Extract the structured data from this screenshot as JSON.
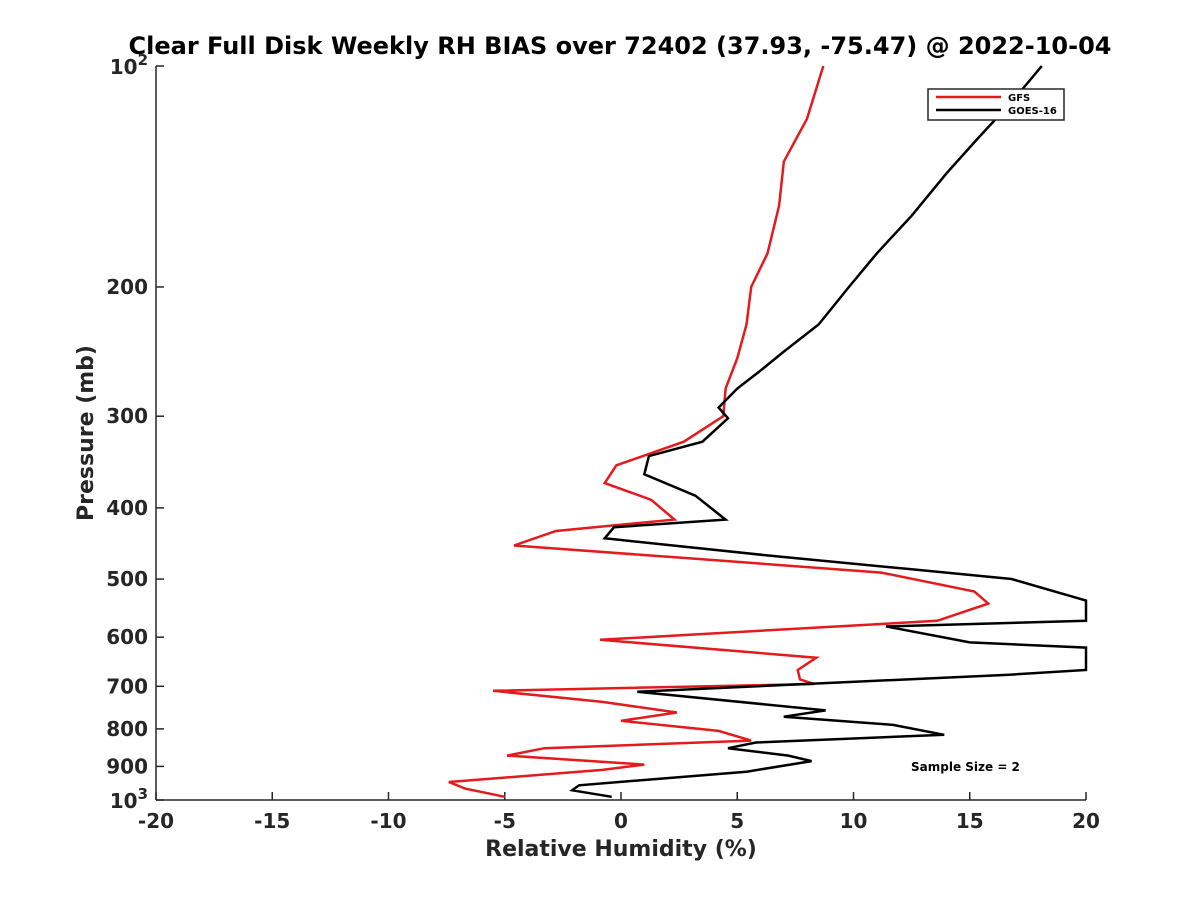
{
  "chart_data": {
    "type": "line",
    "title": "Clear Full Disk Weekly RH BIAS over 72402 (37.93, -75.47) @ 2022-10-04",
    "xlabel": "Relative Humidity (%)",
    "ylabel": "Pressure (mb)",
    "xlim": [
      -20,
      20
    ],
    "ylim": [
      100,
      1000
    ],
    "y_scale": "log",
    "y_reversed": true,
    "x_ticks": [
      -20,
      -15,
      -10,
      -5,
      0,
      5,
      10,
      15,
      20
    ],
    "x_tick_labels": [
      "-20",
      "-15",
      "-10",
      "-5",
      "0",
      "5",
      "10",
      "15",
      "20"
    ],
    "y_ticks": [
      200,
      300,
      400,
      500,
      600,
      700,
      800,
      900
    ],
    "y_tick_labels": [
      "200",
      "300",
      "400",
      "500",
      "600",
      "700",
      "800",
      "900"
    ],
    "y_tick_pow": [
      {
        "value": 100,
        "base": "10",
        "exp": "2"
      },
      {
        "value": 1000,
        "base": "10",
        "exp": "3"
      }
    ],
    "annotation": "Sample Size = 2",
    "legend_position": "top-right",
    "series": [
      {
        "name": "GFS",
        "color": "#e41a1c",
        "points": [
          [
            8.7,
            100
          ],
          [
            8.0,
            118
          ],
          [
            7.0,
            135
          ],
          [
            6.8,
            155
          ],
          [
            6.3,
            180
          ],
          [
            5.6,
            200
          ],
          [
            5.4,
            225
          ],
          [
            5.0,
            250
          ],
          [
            4.5,
            275
          ],
          [
            4.4,
            300
          ],
          [
            2.7,
            325
          ],
          [
            -0.2,
            350
          ],
          [
            -0.7,
            370
          ],
          [
            1.3,
            390
          ],
          [
            2.3,
            415
          ],
          [
            -2.8,
            430
          ],
          [
            -4.6,
            450
          ],
          [
            3.5,
            470
          ],
          [
            11.2,
            490
          ],
          [
            15.2,
            520
          ],
          [
            15.8,
            540
          ],
          [
            13.6,
            570
          ],
          [
            -0.9,
            605
          ],
          [
            8.4,
            640
          ],
          [
            7.6,
            665
          ],
          [
            7.7,
            685
          ],
          [
            8.3,
            695
          ],
          [
            -5.5,
            710
          ],
          [
            -0.8,
            735
          ],
          [
            2.4,
            760
          ],
          [
            0.0,
            780
          ],
          [
            4.2,
            805
          ],
          [
            5.6,
            830
          ],
          [
            -3.3,
            850
          ],
          [
            -4.9,
            870
          ],
          [
            1.0,
            895
          ],
          [
            -0.8,
            910
          ],
          [
            -7.4,
            945
          ],
          [
            -6.7,
            965
          ],
          [
            -5.0,
            990
          ]
        ]
      },
      {
        "name": "GOES-16",
        "color": "#000000",
        "points": [
          [
            18.1,
            100
          ],
          [
            16.8,
            112
          ],
          [
            15.4,
            125
          ],
          [
            14.0,
            140
          ],
          [
            12.5,
            160
          ],
          [
            11.0,
            180
          ],
          [
            9.8,
            200
          ],
          [
            8.5,
            225
          ],
          [
            7.0,
            245
          ],
          [
            6.0,
            260
          ],
          [
            5.0,
            275
          ],
          [
            4.2,
            292
          ],
          [
            4.6,
            302
          ],
          [
            3.5,
            325
          ],
          [
            1.2,
            340
          ],
          [
            1.0,
            360
          ],
          [
            3.2,
            385
          ],
          [
            4.5,
            415
          ],
          [
            -0.3,
            425
          ],
          [
            -0.7,
            440
          ],
          [
            6.5,
            465
          ],
          [
            12.5,
            485
          ],
          [
            16.8,
            500
          ],
          [
            20.0,
            535
          ],
          [
            20.0,
            570
          ],
          [
            11.4,
            580
          ],
          [
            15.0,
            610
          ],
          [
            20.0,
            620
          ],
          [
            20.0,
            665
          ],
          [
            16.7,
            675
          ],
          [
            0.7,
            712
          ],
          [
            8.8,
            755
          ],
          [
            7.0,
            770
          ],
          [
            11.7,
            790
          ],
          [
            13.9,
            815
          ],
          [
            5.8,
            835
          ],
          [
            4.6,
            850
          ],
          [
            7.2,
            870
          ],
          [
            8.2,
            885
          ],
          [
            5.4,
            915
          ],
          [
            -1.8,
            955
          ],
          [
            -2.1,
            970
          ],
          [
            -0.4,
            990
          ]
        ]
      }
    ]
  }
}
